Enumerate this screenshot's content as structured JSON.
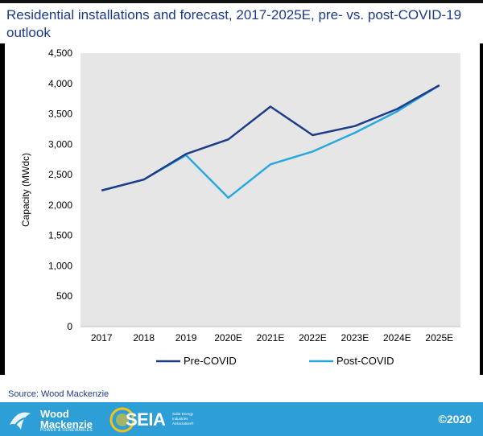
{
  "title": "Residential installations and forecast, 2017-2025E, pre- vs. post-COVID-19 outlook",
  "source": "Source: Wood Mackenzie",
  "footer": {
    "wood_mackenzie_name": "Wood Mackenzie",
    "wood_mackenzie_tagline": "POWER & RENEWABLES",
    "seia_name": "SEIA",
    "seia_tagline": "Solar Energy Industries Association®",
    "copyright": "©2020"
  },
  "chart_data": {
    "type": "line",
    "title": "Residential installations and forecast, 2017-2025E, pre- vs. post-COVID-19 outlook",
    "xlabel": "",
    "ylabel": "Capacity (MWdc)",
    "categories": [
      "2017",
      "2018",
      "2019",
      "2020E",
      "2021E",
      "2022E",
      "2023E",
      "2024E",
      "2025E"
    ],
    "ylim": [
      0,
      4500
    ],
    "yticks": [
      0,
      500,
      1000,
      1500,
      2000,
      2500,
      3000,
      3500,
      4000,
      4500
    ],
    "ytick_labels": [
      "0",
      "500",
      "1,000",
      "1,500",
      "2,000",
      "2,500",
      "3,000",
      "3,500",
      "4,000",
      "4,500"
    ],
    "grid": false,
    "legend_position": "bottom",
    "series": [
      {
        "name": "Pre-COVID",
        "color": "#1f3c88",
        "values": [
          2240,
          2420,
          2840,
          3080,
          3620,
          3150,
          3300,
          3580,
          3970
        ]
      },
      {
        "name": "Post-COVID",
        "color": "#29a8e0",
        "values": [
          2240,
          2420,
          2820,
          2120,
          2670,
          2880,
          3190,
          3540,
          3970
        ]
      }
    ],
    "plot_background": "#e6e6e6"
  }
}
